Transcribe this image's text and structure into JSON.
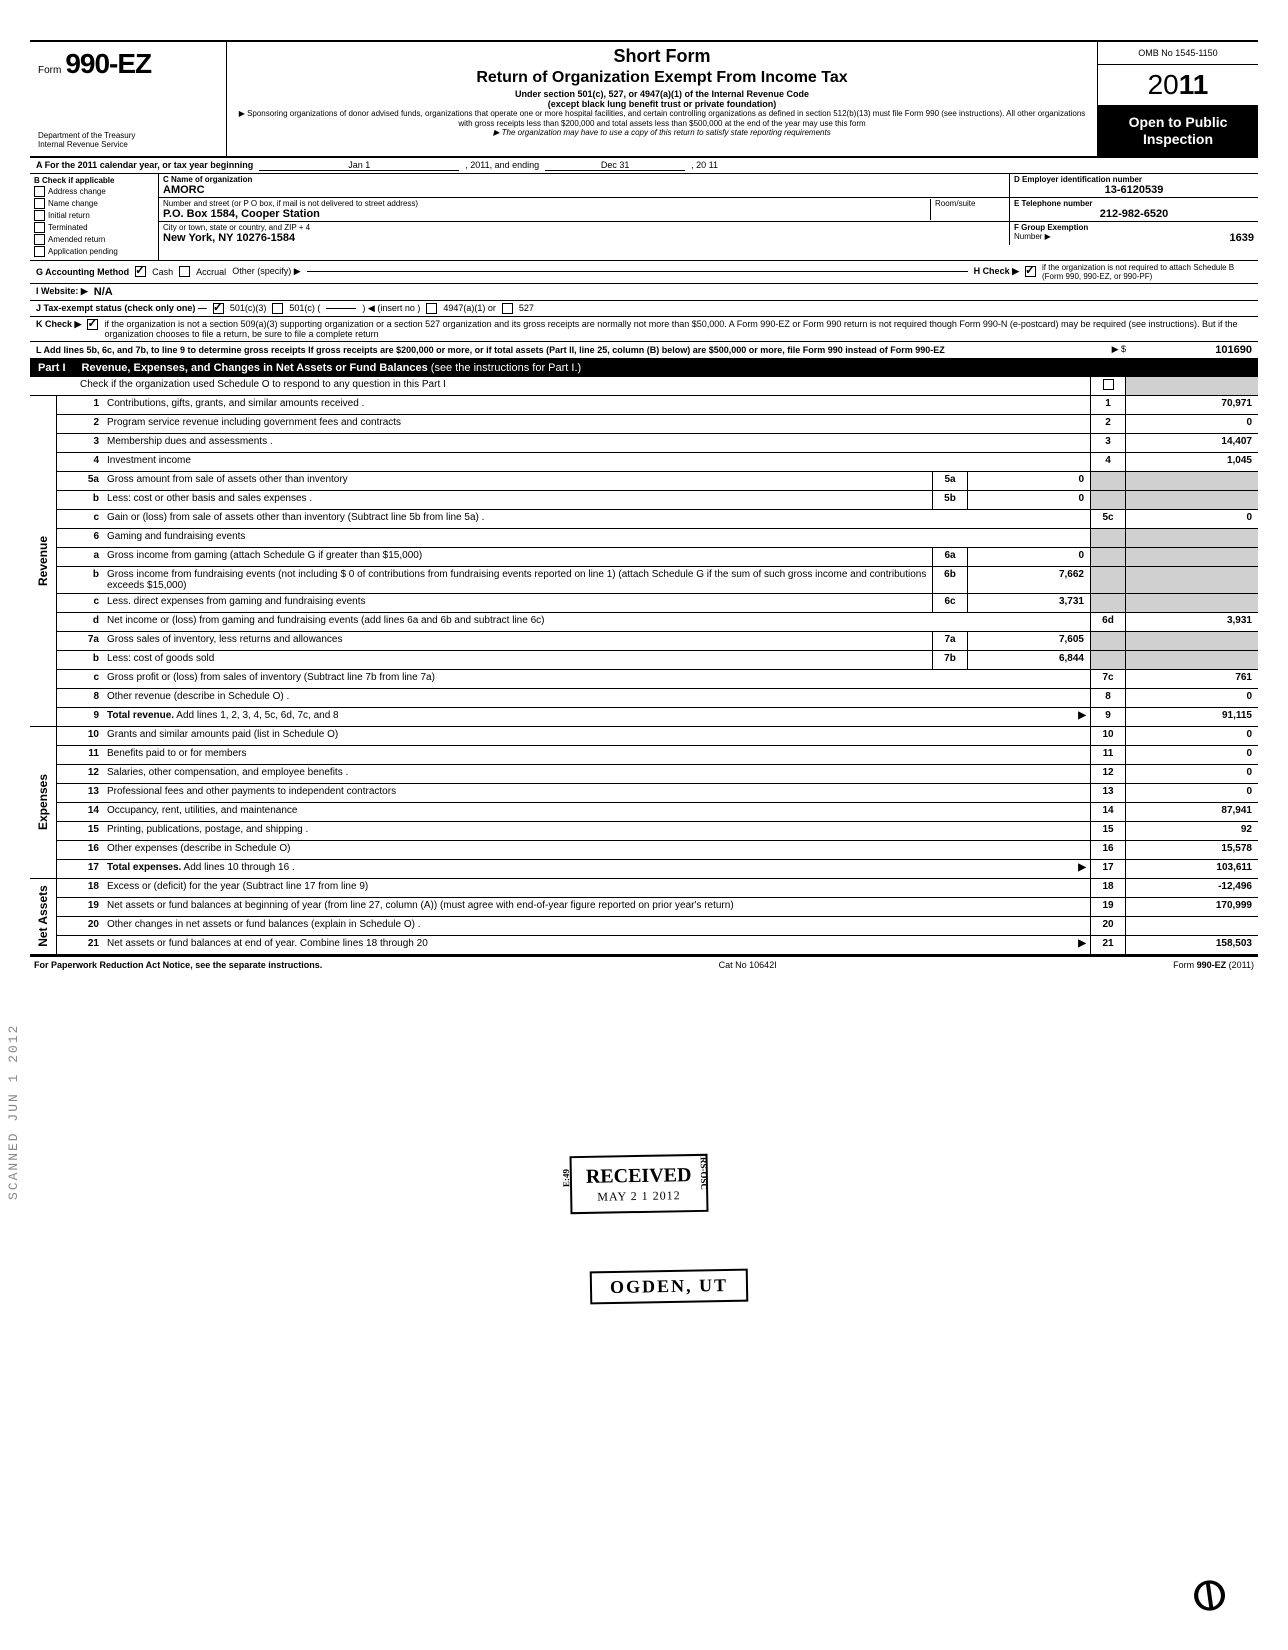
{
  "header": {
    "form_word": "Form",
    "form_number": "990-EZ",
    "dept1": "Department of the Treasury",
    "dept2": "Internal Revenue Service",
    "short_form": "Short Form",
    "title": "Return of Organization Exempt From Income Tax",
    "sub1": "Under section 501(c), 527, or 4947(a)(1) of the Internal Revenue Code",
    "sub2": "(except black lung benefit trust or private foundation)",
    "sub3": "▶ Sponsoring organizations of donor advised funds, organizations that operate one or more hospital facilities, and certain controlling organizations as defined in section 512(b)(13) must file Form 990 (see instructions). All other organizations with gross receipts less than $200,000 and total assets less than $500,000 at the end of the year may use this form",
    "sub4": "▶ The organization may have to use a copy of this return to satisfy state reporting requirements",
    "omb": "OMB No 1545-1150",
    "year_prefix": "20",
    "year_suffix": "11",
    "open_public": "Open to Public Inspection"
  },
  "A": {
    "text": "A  For the 2011 calendar year, or tax year beginning",
    "begin": "Jan 1",
    "mid": ", 2011, and ending",
    "end": "Dec 31",
    "yr": ", 20   11"
  },
  "B": {
    "label": "B  Check if applicable",
    "items": [
      "Address change",
      "Name change",
      "Initial return",
      "Terminated",
      "Amended return",
      "Application pending"
    ]
  },
  "C": {
    "name_label": "C  Name of organization",
    "name": "AMORC",
    "street_label": "Number and street (or P O  box, if mail is not delivered to street address)",
    "room_label": "Room/suite",
    "street": "P.O. Box 1584, Cooper Station",
    "city_label": "City or town, state or country, and ZIP + 4",
    "city": "New York, NY 10276-1584"
  },
  "D": {
    "label": "D Employer identification number",
    "value": "13-6120539"
  },
  "E": {
    "label": "E  Telephone number",
    "value": "212-982-6520"
  },
  "F": {
    "label": "F  Group Exemption",
    "label2": "Number  ▶",
    "value": "1639"
  },
  "G": {
    "label": "G  Accounting Method",
    "cash": "Cash",
    "accrual": "Accrual",
    "other": "Other (specify) ▶"
  },
  "H": {
    "text": "H  Check ▶",
    "text2": "if the organization is not required to attach Schedule B (Form 990, 990-EZ, or 990-PF)"
  },
  "I": {
    "label": "I   Website: ▶",
    "value": "N/A"
  },
  "J": {
    "label": "J  Tax-exempt status (check only one) —",
    "c3": "501(c)(3)",
    "c": "501(c) (",
    "insert": ") ◀ (insert no )",
    "a1": "4947(a)(1) or",
    "527": "527"
  },
  "K": {
    "label": "K  Check ▶",
    "text": "if the organization is not a section 509(a)(3) supporting organization or a section 527 organization and its gross receipts are normally not more than $50,000. A Form 990-EZ or Form 990 return is not required though Form 990-N (e-postcard) may be required (see instructions). But if the organization chooses to file a return, be sure to file a complete return"
  },
  "L": {
    "text": "L  Add lines 5b, 6c, and 7b, to line 9 to determine gross receipts  If gross receipts are $200,000 or more, or if total assets (Part II, line 25, column (B) below) are $500,000 or more, file Form 990 instead of Form 990-EZ",
    "arrow": "▶  $",
    "value": "101690"
  },
  "part1": {
    "label": "Part I",
    "title": "Revenue, Expenses, and Changes in Net Assets or Fund Balances",
    "sub": "(see the instructions for Part I.)",
    "check_line": "Check if the organization used Schedule O to respond to any question in this Part I"
  },
  "revenue_label": "Revenue",
  "expenses_label": "Expenses",
  "netassets_label": "Net Assets",
  "lines": {
    "l1": {
      "n": "1",
      "d": "Contributions, gifts, grants, and similar amounts received .",
      "r": "1",
      "v": "70,971"
    },
    "l2": {
      "n": "2",
      "d": "Program service revenue including government fees and contracts",
      "r": "2",
      "v": "0"
    },
    "l3": {
      "n": "3",
      "d": "Membership dues and assessments .",
      "r": "3",
      "v": "14,407"
    },
    "l4": {
      "n": "4",
      "d": "Investment income",
      "r": "4",
      "v": "1,045"
    },
    "l5a": {
      "n": "5a",
      "d": "Gross amount from sale of assets other than inventory",
      "mc": "5a",
      "mv": "0"
    },
    "l5b": {
      "n": "b",
      "d": "Less: cost or other basis and sales expenses .",
      "mc": "5b",
      "mv": "0"
    },
    "l5c": {
      "n": "c",
      "d": "Gain or (loss) from sale of assets other than inventory (Subtract line 5b from line 5a) .",
      "r": "5c",
      "v": "0"
    },
    "l6": {
      "n": "6",
      "d": "Gaming and fundraising events"
    },
    "l6a": {
      "n": "a",
      "d": "Gross income from gaming (attach Schedule G if greater than $15,000)",
      "mc": "6a",
      "mv": "0"
    },
    "l6b": {
      "n": "b",
      "d": "Gross income from fundraising events (not including  $                    0 of contributions from fundraising events reported on line 1) (attach Schedule G if the sum of such gross income and contributions exceeds $15,000)",
      "mc": "6b",
      "mv": "7,662"
    },
    "l6c": {
      "n": "c",
      "d": "Less. direct expenses from gaming and fundraising events",
      "mc": "6c",
      "mv": "3,731"
    },
    "l6d": {
      "n": "d",
      "d": "Net income or (loss) from gaming and fundraising events (add lines 6a and 6b and subtract line 6c)",
      "r": "6d",
      "v": "3,931"
    },
    "l7a": {
      "n": "7a",
      "d": "Gross sales of inventory, less returns and allowances",
      "mc": "7a",
      "mv": "7,605"
    },
    "l7b": {
      "n": "b",
      "d": "Less: cost of goods sold",
      "mc": "7b",
      "mv": "6,844"
    },
    "l7c": {
      "n": "c",
      "d": "Gross profit or (loss) from sales of inventory (Subtract line 7b from line 7a)",
      "r": "7c",
      "v": "761"
    },
    "l8": {
      "n": "8",
      "d": "Other revenue (describe in Schedule O) .",
      "r": "8",
      "v": "0"
    },
    "l9": {
      "n": "9",
      "d": "Total revenue. Add lines 1, 2, 3, 4, 5c, 6d, 7c, and 8",
      "r": "9",
      "v": "91,115",
      "bold": true,
      "arrow": true
    },
    "l10": {
      "n": "10",
      "d": "Grants and similar amounts paid (list in Schedule O)",
      "r": "10",
      "v": "0"
    },
    "l11": {
      "n": "11",
      "d": "Benefits paid to or for members",
      "r": "11",
      "v": "0"
    },
    "l12": {
      "n": "12",
      "d": "Salaries, other compensation, and employee benefits .",
      "r": "12",
      "v": "0"
    },
    "l13": {
      "n": "13",
      "d": "Professional fees and other payments to independent contractors",
      "r": "13",
      "v": "0"
    },
    "l14": {
      "n": "14",
      "d": "Occupancy, rent, utilities, and maintenance",
      "r": "14",
      "v": "87,941"
    },
    "l15": {
      "n": "15",
      "d": "Printing, publications, postage, and shipping .",
      "r": "15",
      "v": "92"
    },
    "l16": {
      "n": "16",
      "d": "Other expenses (describe in Schedule O)",
      "r": "16",
      "v": "15,578"
    },
    "l17": {
      "n": "17",
      "d": "Total expenses. Add lines 10 through 16 .",
      "r": "17",
      "v": "103,611",
      "bold": true,
      "arrow": true
    },
    "l18": {
      "n": "18",
      "d": "Excess or (deficit) for the year (Subtract line 17 from line 9)",
      "r": "18",
      "v": "-12,496"
    },
    "l19": {
      "n": "19",
      "d": "Net assets or fund balances at beginning of year (from line 27, column (A)) (must agree with end-of-year figure reported on prior year's return)",
      "r": "19",
      "v": "170,999"
    },
    "l20": {
      "n": "20",
      "d": "Other changes in net assets or fund balances (explain in Schedule O) .",
      "r": "20",
      "v": ""
    },
    "l21": {
      "n": "21",
      "d": "Net assets or fund balances at end of year. Combine lines 18 through 20",
      "r": "21",
      "v": "158,503",
      "arrow": true
    }
  },
  "footer": {
    "left": "For Paperwork Reduction Act Notice, see the separate instructions.",
    "mid": "Cat No  10642I",
    "right": "Form 990-EZ (2011)"
  },
  "stamps": {
    "received": "RECEIVED",
    "received_date": "MAY  2 1  2012",
    "received_side_l": "E:49",
    "received_side_r": "IRS-OSC",
    "ogden": "OGDEN, UT",
    "side": "SCANNED  JUN 1  2012"
  }
}
